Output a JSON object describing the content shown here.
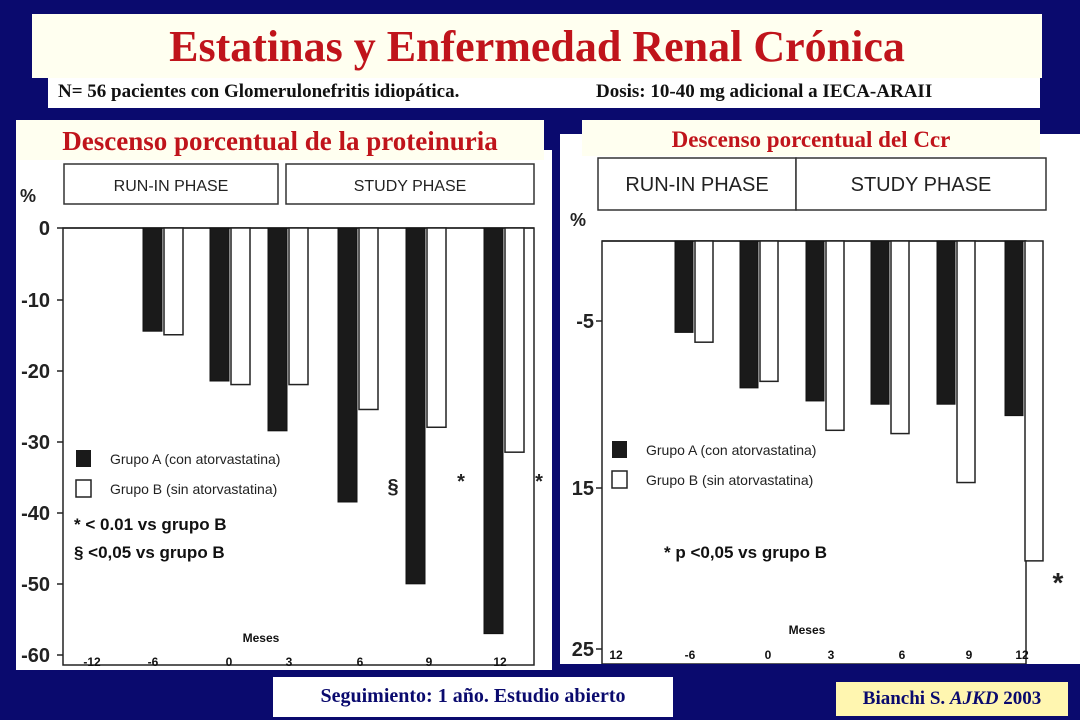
{
  "slide": {
    "title": "Estatinas y Enfermedad Renal Crónica",
    "subtitle_patients": "N= 56 pacientes con Glomerulonefritis idiopática.",
    "subtitle_dose": "Dosis: 10-40 mg adicional a IECA-ARAII",
    "footer": "Seguimiento: 1 año. Estudio abierto",
    "citation_author": "Bianchi S.",
    "citation_journal": "AJKD",
    "citation_year": "2003"
  },
  "colors": {
    "background": "#0a0a6e",
    "title_red": "#c0141b",
    "bar_dark": "#1a1a1a",
    "bar_light": "#ffffff"
  },
  "chart_data": [
    {
      "type": "bar",
      "title": "Descenso porcentual de la proteinuria",
      "ylabel": "%",
      "xlabel": "Meses",
      "phase_labels": [
        "RUN-IN PHASE",
        "STUDY PHASE"
      ],
      "x_ticks": [
        "-12",
        "-6",
        "0",
        "3",
        "6",
        "9",
        "12"
      ],
      "y_ticks": [
        "0",
        "-10",
        "-20",
        "-30",
        "-40",
        "-50",
        "-60"
      ],
      "ylim": [
        -60,
        0
      ],
      "categories": [
        "-6",
        "0",
        "3",
        "6",
        "9",
        "12"
      ],
      "series": [
        {
          "name": "Grupo A (con atorvastatina)",
          "values": [
            -14.5,
            -21.5,
            -28.5,
            -38.5,
            -50,
            -57
          ]
        },
        {
          "name": "Grupo B (sin atorvastatina)",
          "values": [
            -15,
            -22,
            -22,
            -25.5,
            -28,
            -31.5
          ]
        }
      ],
      "bar_markers": [
        "",
        "",
        "",
        "§",
        "*",
        "*"
      ],
      "notes": [
        "* < 0.01 vs grupo B",
        "§ <0,05 vs grupo B"
      ]
    },
    {
      "type": "bar",
      "title": "Descenso porcentual del Ccr",
      "ylabel": "%",
      "xlabel": "Meses",
      "phase_labels": [
        "RUN-IN PHASE",
        "STUDY PHASE"
      ],
      "x_ticks": [
        "12",
        "-6",
        "0",
        "3",
        "6",
        "9",
        "12"
      ],
      "y_ticks": [
        "-5",
        "15",
        "25"
      ],
      "ylim": [
        -25,
        0
      ],
      "categories": [
        "-6",
        "0",
        "3",
        "6",
        "9",
        "12"
      ],
      "series": [
        {
          "name": "Grupo A (con atorvastatina)",
          "values": [
            -5.6,
            -9,
            -9.8,
            -10,
            -10,
            -10.7
          ]
        },
        {
          "name": "Grupo B (sin atorvastatina)",
          "values": [
            -6.2,
            -8.6,
            -11.6,
            -11.8,
            -14.8,
            -19.6
          ]
        }
      ],
      "bar_markers": [
        "",
        "",
        "",
        "",
        "",
        "*"
      ],
      "notes": [
        "* p <0,05 vs grupo B"
      ]
    }
  ]
}
